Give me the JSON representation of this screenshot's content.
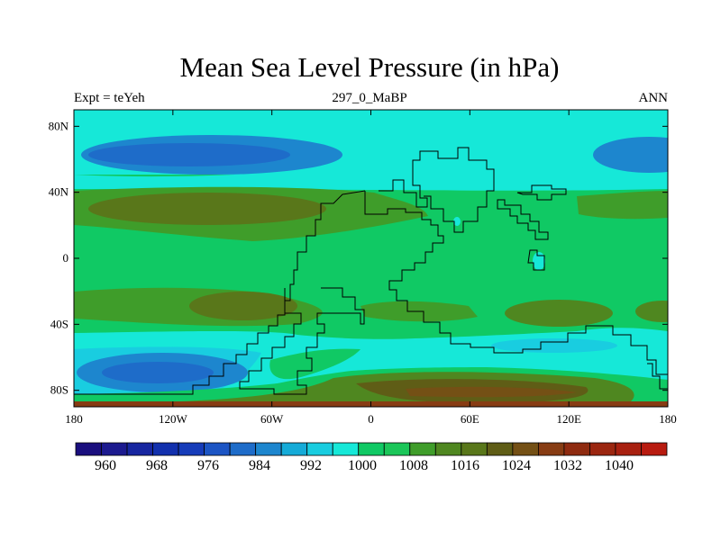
{
  "title": "Mean Sea Level Pressure (in hPa)",
  "subtitle_left": "Expt = teYeh",
  "subtitle_center": "297_0_MaBP",
  "subtitle_right": "ANN",
  "map": {
    "lat_axis": {
      "ticks": [
        "80N",
        "40N",
        "0",
        "40S",
        "80S"
      ],
      "values": [
        80,
        40,
        0,
        -40,
        -80
      ],
      "range": [
        -90,
        90
      ]
    },
    "lon_axis": {
      "ticks": [
        "180",
        "120W",
        "60W",
        "0",
        "60E",
        "120E",
        "180"
      ],
      "values": [
        -180,
        -120,
        -60,
        0,
        60,
        120,
        180
      ],
      "range": [
        -180,
        180
      ]
    },
    "units": "hPa",
    "field": "mean sea level pressure, annual mean, filled contours"
  },
  "colorbar": {
    "colors": [
      "#1a0f7e",
      "#1c1a8f",
      "#1726a0",
      "#1230ad",
      "#163cb9",
      "#1c55c4",
      "#1e6cc9",
      "#1d86ce",
      "#15abd8",
      "#19cde0",
      "#16e8d8",
      "#10c964",
      "#1bc659",
      "#3f9d2a",
      "#4f8720",
      "#59771a",
      "#5f5d16",
      "#745015",
      "#873c13",
      "#8f2b10",
      "#9b2610",
      "#a82010",
      "#b81b10"
    ],
    "labels": [
      "960",
      "968",
      "976",
      "984",
      "992",
      "1000",
      "1008",
      "1016",
      "1024",
      "1032",
      "1040"
    ]
  }
}
